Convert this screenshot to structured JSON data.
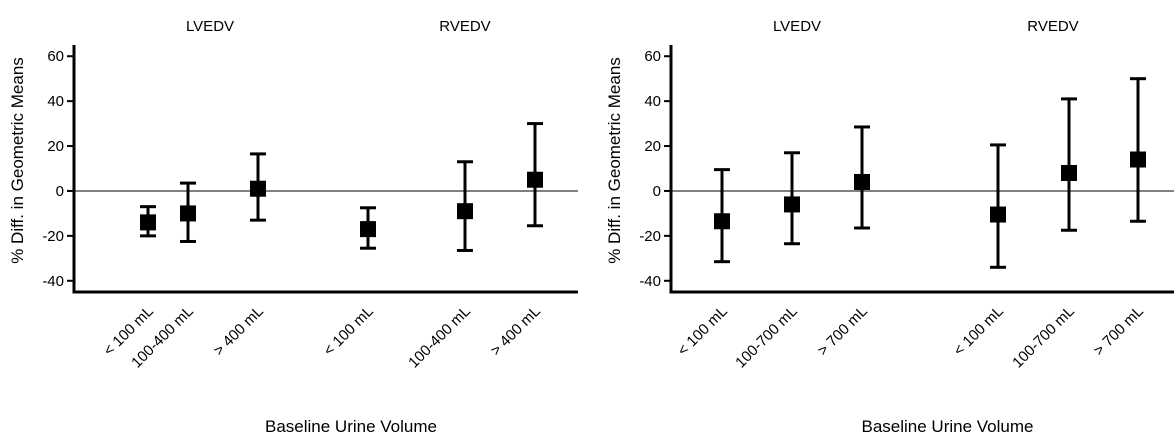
{
  "chart_data": [
    {
      "type": "scatter",
      "xlabel": "Baseline Urine Volume",
      "ylabel": "% Diff. in Geometric Means",
      "ylim": [
        -45,
        65
      ],
      "yticks": [
        -40,
        -20,
        0,
        20,
        40,
        60
      ],
      "yticklabels": [
        "-40",
        "-20",
        "0",
        "20",
        "40",
        "60"
      ],
      "reference_line": 0,
      "grid": false,
      "groups": [
        {
          "title": "LVEDV",
          "points": [
            {
              "category": "< 100 mL",
              "estimate": -14,
              "lower": -20,
              "upper": -7
            },
            {
              "category": "100-400 mL",
              "estimate": -10,
              "lower": -22.5,
              "upper": 3.5
            },
            {
              "category": "> 400 mL",
              "estimate": 1,
              "lower": -13,
              "upper": 16.5
            }
          ]
        },
        {
          "title": "RVEDV",
          "points": [
            {
              "category": "< 100 mL",
              "estimate": -17,
              "lower": -25.5,
              "upper": -7.5
            },
            {
              "category": "100-400 mL",
              "estimate": -9,
              "lower": -26.5,
              "upper": 13
            },
            {
              "category": "> 400 mL",
              "estimate": 5,
              "lower": -15.5,
              "upper": 30
            }
          ]
        }
      ]
    },
    {
      "type": "scatter",
      "xlabel": "Baseline Urine Volume",
      "ylabel": "% Diff. in Geometric Means",
      "ylim": [
        -45,
        65
      ],
      "yticks": [
        -40,
        -20,
        0,
        20,
        40,
        60
      ],
      "yticklabels": [
        "-40",
        "-20",
        "0",
        "20",
        "40",
        "60"
      ],
      "reference_line": 0,
      "grid": false,
      "groups": [
        {
          "title": "LVEDV",
          "points": [
            {
              "category": "< 100 mL",
              "estimate": -13.5,
              "lower": -31.5,
              "upper": 9.5
            },
            {
              "category": "100-700 mL",
              "estimate": -6,
              "lower": -23.5,
              "upper": 17
            },
            {
              "category": "> 700 mL",
              "estimate": 4,
              "lower": -16.5,
              "upper": 28.5
            }
          ]
        },
        {
          "title": "RVEDV",
          "points": [
            {
              "category": "< 100 mL",
              "estimate": -10.5,
              "lower": -34,
              "upper": 20.5
            },
            {
              "category": "100-700 mL",
              "estimate": 8,
              "lower": -17.5,
              "upper": 41
            },
            {
              "category": "> 700 mL",
              "estimate": 14,
              "lower": -13.5,
              "upper": 50
            }
          ]
        }
      ]
    }
  ]
}
